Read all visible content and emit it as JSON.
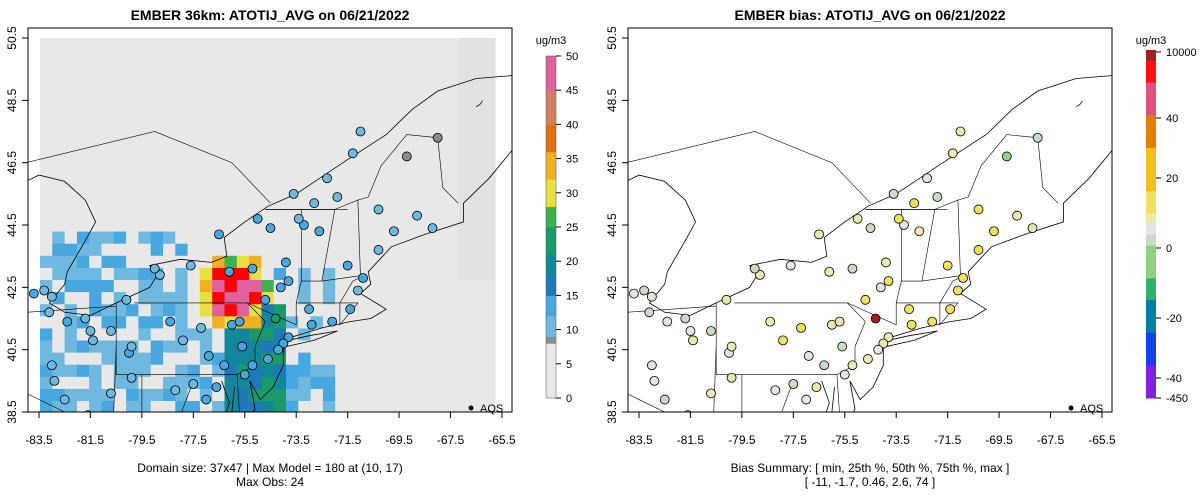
{
  "chart_data": [
    {
      "type": "heatmap",
      "title": "EMBER 36km: ATOTIJ_AVG on 06/21/2022",
      "colorbar_label": "ug/m3",
      "colorbar_ticks": [
        "0",
        "5",
        "10",
        "15",
        "20",
        "25",
        "30",
        "35",
        "40",
        "45",
        "50"
      ],
      "colorbar_range": [
        0,
        50
      ],
      "x_ticks": [
        "-83.5",
        "-81.5",
        "-79.5",
        "-77.5",
        "-75.5",
        "-73.5",
        "-71.5",
        "-69.5",
        "-67.5",
        "-65.5"
      ],
      "y_ticks": [
        "38.5",
        "40.5",
        "42.5",
        "44.5",
        "46.5",
        "48.5",
        "50.5"
      ],
      "xlim": [
        -84,
        -65
      ],
      "ylim": [
        38.2,
        50.5
      ],
      "legend": "AQS",
      "footer_line1": "Domain size: 37x47 | Max Model = 180 at (10, 17)",
      "footer_line2": "Max Obs: 24"
    },
    {
      "type": "scatter",
      "title": "EMBER bias: ATOTIJ_AVG on 06/21/2022",
      "colorbar_label": "ug/m3",
      "colorbar_ticks": [
        "-450",
        "-40",
        "-20",
        "0",
        "20",
        "40",
        "10000"
      ],
      "x_ticks": [
        "-83.5",
        "-81.5",
        "-79.5",
        "-77.5",
        "-75.5",
        "-73.5",
        "-71.5",
        "-69.5",
        "-67.5",
        "-65.5"
      ],
      "y_ticks": [
        "38.5",
        "40.5",
        "42.5",
        "44.5",
        "46.5",
        "48.5",
        "50.5"
      ],
      "legend": "AQS",
      "footer_line1": "Bias Summary: [ min, 25th %, 50th %, 75th %, max ]",
      "footer_line2": "[ -11,   -1.7,  0.46,  2.6,   74 ]"
    }
  ],
  "stations": [
    [
      -83.7,
      42.3,
      12,
      0
    ],
    [
      -83.3,
      42.4,
      11,
      -1
    ],
    [
      -83.0,
      42.2,
      10,
      0
    ],
    [
      -83.1,
      41.7,
      11,
      -1
    ],
    [
      -82.4,
      41.4,
      12,
      0
    ],
    [
      -81.7,
      41.5,
      11,
      -2
    ],
    [
      -81.5,
      41.1,
      10,
      0
    ],
    [
      -81.4,
      40.8,
      11,
      1
    ],
    [
      -80.7,
      41.1,
      11,
      -1
    ],
    [
      -80.0,
      40.4,
      12,
      0
    ],
    [
      -79.9,
      40.6,
      11,
      1
    ],
    [
      -80.1,
      42.1,
      10,
      2
    ],
    [
      -78.8,
      42.9,
      11,
      2
    ],
    [
      -79.0,
      43.1,
      10,
      -1
    ],
    [
      -77.6,
      43.2,
      11,
      0
    ],
    [
      -76.1,
      43.0,
      12,
      1
    ],
    [
      -75.2,
      43.1,
      12,
      -1
    ],
    [
      -73.8,
      42.7,
      13,
      3
    ],
    [
      -73.9,
      43.3,
      12,
      1
    ],
    [
      -73.2,
      44.5,
      12,
      0
    ],
    [
      -72.6,
      44.3,
      12,
      2
    ],
    [
      -71.5,
      43.2,
      12,
      4
    ],
    [
      -71.1,
      42.4,
      11,
      5
    ],
    [
      -71.4,
      41.8,
      12,
      3
    ],
    [
      -70.9,
      42.8,
      12,
      6
    ],
    [
      -70.3,
      43.7,
      11,
      4
    ],
    [
      -69.7,
      44.3,
      10,
      3
    ],
    [
      -68.8,
      44.8,
      10,
      1
    ],
    [
      -68.2,
      44.4,
      9,
      2
    ],
    [
      -70.3,
      45.0,
      9,
      3
    ],
    [
      -69.2,
      46.7,
      8,
      -3
    ],
    [
      -68.0,
      47.3,
      8,
      -2
    ],
    [
      -71.0,
      47.5,
      10,
      1
    ],
    [
      -71.3,
      46.8,
      10,
      2
    ],
    [
      -72.3,
      46.0,
      11,
      0
    ],
    [
      -73.6,
      45.5,
      11,
      -2
    ],
    [
      -71.9,
      45.4,
      10,
      -1
    ],
    [
      -72.9,
      41.3,
      12,
      6
    ],
    [
      -73.0,
      41.8,
      12,
      4
    ],
    [
      -72.1,
      41.4,
      12,
      3
    ],
    [
      -73.8,
      40.9,
      12,
      2
    ],
    [
      -74.0,
      40.7,
      12,
      1
    ],
    [
      -74.2,
      40.5,
      13,
      0
    ],
    [
      -74.6,
      40.2,
      12,
      2
    ],
    [
      -75.2,
      40.0,
      12,
      1
    ],
    [
      -75.5,
      39.7,
      12,
      0
    ],
    [
      -75.6,
      40.6,
      13,
      -2
    ],
    [
      -76.3,
      40.0,
      12,
      -1
    ],
    [
      -76.9,
      40.3,
      12,
      0
    ],
    [
      -77.9,
      40.8,
      11,
      3
    ],
    [
      -76.6,
      39.3,
      12,
      1
    ],
    [
      -77.0,
      38.9,
      12,
      0
    ],
    [
      -77.5,
      39.4,
      11,
      -1
    ],
    [
      -78.2,
      39.2,
      11,
      0
    ],
    [
      -79.9,
      39.6,
      11,
      2
    ],
    [
      -80.7,
      39.1,
      10,
      1
    ],
    [
      -81.6,
      38.4,
      10,
      0
    ],
    [
      -82.5,
      38.9,
      10,
      -1
    ],
    [
      -83.0,
      40.0,
      11,
      0
    ],
    [
      -84.2,
      39.7,
      11,
      -1
    ],
    [
      -82.9,
      39.5,
      10,
      0
    ],
    [
      -78.4,
      41.4,
      12,
      1
    ],
    [
      -77.2,
      41.2,
      11,
      4
    ],
    [
      -76.0,
      41.3,
      12,
      1
    ],
    [
      -75.7,
      41.4,
      12,
      2
    ],
    [
      -74.3,
      41.5,
      24,
      74
    ],
    [
      -74.7,
      42.1,
      12,
      3
    ],
    [
      -74.1,
      42.5,
      12,
      0
    ],
    [
      -75.0,
      44.7,
      12,
      2
    ],
    [
      -76.5,
      44.2,
      12,
      1
    ],
    [
      -74.5,
      44.4,
      12,
      -1
    ],
    [
      -73.4,
      44.7,
      11,
      5
    ],
    [
      -72.8,
      45.2,
      11,
      4
    ]
  ]
}
